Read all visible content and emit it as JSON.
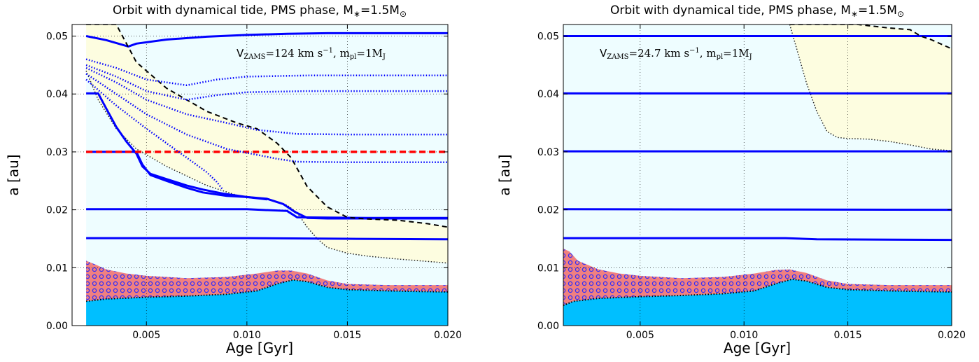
{
  "chart_data": [
    {
      "type": "line",
      "title": "Orbit with dynamical tide, PMS phase, M∗=1.5M⊙",
      "xlabel": "Age [Gyr]",
      "ylabel": "a [au]",
      "xlim": [
        0.0013,
        0.02
      ],
      "ylim": [
        0.0,
        0.052
      ],
      "x_ticks": [
        "0.005",
        "0.010",
        "0.015",
        "0.020"
      ],
      "x_tick_values": [
        0.005,
        0.01,
        0.015,
        0.02
      ],
      "y_ticks": [
        "0.00",
        "0.01",
        "0.02",
        "0.03",
        "0.04",
        "0.05"
      ],
      "y_tick_values": [
        0.0,
        0.01,
        0.02,
        0.03,
        0.04,
        0.05
      ],
      "grid": true,
      "annotation": "V_ZAMS = 124 km s⁻¹, m_pl = 1M_J",
      "colors": {
        "background": "#eefdff",
        "tidal_region": "#fdfde0",
        "star": "#00bfff",
        "hatched": "#f08080",
        "orbit": "#0000ff",
        "reference": "#ff0000"
      },
      "regions": {
        "tidal_upper": {
          "x": [
            0.002,
            0.0028,
            0.0035,
            0.0045,
            0.006,
            0.008,
            0.0095,
            0.0105,
            0.0115,
            0.0122,
            0.013,
            0.014,
            0.015,
            0.016,
            0.0175,
            0.019,
            0.02
          ],
          "y": [
            0.052,
            0.052,
            0.052,
            0.0455,
            0.041,
            0.037,
            0.035,
            0.034,
            0.0315,
            0.029,
            0.024,
            0.0205,
            0.0187,
            0.0184,
            0.0182,
            0.0176,
            0.017
          ]
        },
        "tidal_lower": {
          "x": [
            0.002,
            0.0026,
            0.0035,
            0.0045,
            0.006,
            0.008,
            0.0095,
            0.011,
            0.012,
            0.0125,
            0.013,
            0.0135,
            0.014,
            0.015,
            0.016,
            0.0175,
            0.02
          ],
          "y": [
            0.044,
            0.039,
            0.034,
            0.0305,
            0.0275,
            0.0242,
            0.0225,
            0.0218,
            0.0208,
            0.0195,
            0.017,
            0.015,
            0.0135,
            0.0125,
            0.012,
            0.0115,
            0.0108
          ]
        },
        "star_radius": {
          "x": [
            0.002,
            0.003,
            0.005,
            0.007,
            0.009,
            0.0105,
            0.0115,
            0.0123,
            0.013,
            0.014,
            0.015,
            0.017,
            0.02
          ],
          "y": [
            0.0042,
            0.0046,
            0.0049,
            0.0051,
            0.0054,
            0.006,
            0.0072,
            0.0079,
            0.0076,
            0.0066,
            0.0062,
            0.006,
            0.0058
          ]
        },
        "corotation": {
          "x": [
            0.002,
            0.0025,
            0.003,
            0.004,
            0.005,
            0.007,
            0.009,
            0.0105,
            0.0115,
            0.0122,
            0.013,
            0.014,
            0.015,
            0.017,
            0.02
          ],
          "y": [
            0.0112,
            0.0105,
            0.0097,
            0.009,
            0.0086,
            0.0082,
            0.0084,
            0.009,
            0.0095,
            0.0095,
            0.009,
            0.0078,
            0.0072,
            0.007,
            0.007
          ]
        }
      },
      "series": [
        {
          "style": "solid",
          "x": [
            0.002,
            0.003,
            0.0041,
            0.0045,
            0.006,
            0.008,
            0.01,
            0.012,
            0.014,
            0.016,
            0.02
          ],
          "y": [
            0.05,
            0.0493,
            0.0482,
            0.0487,
            0.0494,
            0.0499,
            0.0502,
            0.0504,
            0.0505,
            0.0505,
            0.0505
          ]
        },
        {
          "style": "solid",
          "x": [
            0.002,
            0.0026,
            0.003,
            0.0035,
            0.004,
            0.0045,
            0.0048,
            0.0052,
            0.006,
            0.007,
            0.0078,
            0.0088,
            0.01,
            0.011,
            0.0118,
            0.0124,
            0.013,
            0.014,
            0.017,
            0.02
          ],
          "y": [
            0.0401,
            0.0401,
            0.0375,
            0.0343,
            0.0318,
            0.0297,
            0.0275,
            0.0262,
            0.0253,
            0.0242,
            0.0235,
            0.0228,
            0.0222,
            0.0219,
            0.021,
            0.0196,
            0.0186,
            0.0185,
            0.0185,
            0.0185
          ]
        },
        {
          "style": "solid",
          "x": [
            0.002,
            0.0045,
            0.0048,
            0.0052,
            0.006,
            0.007,
            0.0078,
            0.009,
            0.01,
            0.011
          ],
          "y": [
            0.03,
            0.03,
            0.0278,
            0.026,
            0.025,
            0.0238,
            0.023,
            0.0224,
            0.0222,
            0.0218
          ]
        },
        {
          "style": "solid",
          "x": [
            0.002,
            0.006,
            0.01,
            0.012,
            0.0125,
            0.016,
            0.02
          ],
          "y": [
            0.0201,
            0.0201,
            0.0201,
            0.0198,
            0.0187,
            0.0186,
            0.0186
          ]
        },
        {
          "style": "solid",
          "x": [
            0.002,
            0.01,
            0.015,
            0.02
          ],
          "y": [
            0.0151,
            0.0151,
            0.015,
            0.0149
          ]
        },
        {
          "style": "dashed",
          "color": "red",
          "x": [
            0.002,
            0.02
          ],
          "y": [
            0.03,
            0.03
          ]
        },
        {
          "style": "dashed",
          "color": "black",
          "x": [
            0.002,
            0.0028,
            0.0035,
            0.0045,
            0.006,
            0.008,
            0.0095,
            0.0105,
            0.0115,
            0.0122,
            0.013,
            0.014,
            0.015,
            0.016,
            0.0175,
            0.019,
            0.02
          ],
          "y": [
            0.052,
            0.052,
            0.052,
            0.0455,
            0.041,
            0.037,
            0.035,
            0.034,
            0.0315,
            0.029,
            0.024,
            0.0205,
            0.0187,
            0.0184,
            0.0182,
            0.0176,
            0.017
          ]
        },
        {
          "style": "dotted",
          "x": [
            0.002,
            0.0035,
            0.005,
            0.007,
            0.0085,
            0.01,
            0.013,
            0.016,
            0.02
          ],
          "y": [
            0.046,
            0.0445,
            0.0425,
            0.0415,
            0.0425,
            0.043,
            0.0432,
            0.0432,
            0.0432
          ]
        },
        {
          "style": "dotted",
          "x": [
            0.002,
            0.0035,
            0.005,
            0.007,
            0.0085,
            0.01,
            0.013,
            0.016,
            0.02
          ],
          "y": [
            0.045,
            0.043,
            0.0405,
            0.039,
            0.0398,
            0.0403,
            0.0405,
            0.0405,
            0.0405
          ]
        },
        {
          "style": "dotted",
          "x": [
            0.002,
            0.0035,
            0.005,
            0.007,
            0.009,
            0.0105,
            0.0125,
            0.015,
            0.02
          ],
          "y": [
            0.0445,
            0.042,
            0.039,
            0.0365,
            0.035,
            0.0338,
            0.0331,
            0.033,
            0.033
          ]
        },
        {
          "style": "dotted",
          "x": [
            0.002,
            0.0035,
            0.005,
            0.007,
            0.009,
            0.0105,
            0.0115,
            0.0125,
            0.015,
            0.02
          ],
          "y": [
            0.0435,
            0.04,
            0.0365,
            0.033,
            0.0305,
            0.0295,
            0.0288,
            0.0283,
            0.0282,
            0.0282
          ]
        },
        {
          "style": "dotted",
          "x": [
            0.002,
            0.0035,
            0.005,
            0.0062,
            0.0072,
            0.008,
            0.0085,
            0.0088
          ],
          "y": [
            0.0425,
            0.038,
            0.034,
            0.031,
            0.0285,
            0.0265,
            0.0248,
            0.0235
          ]
        }
      ]
    },
    {
      "type": "line",
      "title": "Orbit with dynamical tide, PMS phase, M∗=1.5M⊙",
      "xlabel": "Age [Gyr]",
      "ylabel": "a [au]",
      "xlim": [
        0.0013,
        0.02
      ],
      "ylim": [
        0.0,
        0.052
      ],
      "x_ticks": [
        "0.005",
        "0.010",
        "0.015",
        "0.020"
      ],
      "x_tick_values": [
        0.005,
        0.01,
        0.015,
        0.02
      ],
      "y_ticks": [
        "0.00",
        "0.01",
        "0.02",
        "0.03",
        "0.04",
        "0.05"
      ],
      "y_tick_values": [
        0.0,
        0.01,
        0.02,
        0.03,
        0.04,
        0.05
      ],
      "grid": true,
      "annotation": "V_ZAMS = 24.7 km s⁻¹, m_pl = 1M_J",
      "colors": {
        "background": "#eefdff",
        "tidal_region": "#fdfde0",
        "star": "#00bfff",
        "hatched": "#f08080",
        "orbit": "#0000ff"
      },
      "regions": {
        "tidal_upper": {
          "x": [
            0.0122,
            0.014,
            0.0155,
            0.016,
            0.017,
            0.018,
            0.0185,
            0.019,
            0.02
          ],
          "y": [
            0.052,
            0.052,
            0.052,
            0.0518,
            0.0514,
            0.0511,
            0.05,
            0.0494,
            0.0478
          ]
        },
        "tidal_lower": {
          "x": [
            0.0122,
            0.0126,
            0.013,
            0.0135,
            0.014,
            0.0145,
            0.015,
            0.016,
            0.017,
            0.018,
            0.019,
            0.02
          ],
          "y": [
            0.052,
            0.047,
            0.042,
            0.037,
            0.0335,
            0.0325,
            0.0323,
            0.0322,
            0.0318,
            0.0312,
            0.0305,
            0.0302
          ]
        },
        "star_radius": {
          "x": [
            0.0013,
            0.0018,
            0.003,
            0.005,
            0.007,
            0.009,
            0.0105,
            0.0115,
            0.0123,
            0.013,
            0.014,
            0.015,
            0.017,
            0.02
          ],
          "y": [
            0.0035,
            0.0042,
            0.0047,
            0.005,
            0.0052,
            0.0055,
            0.006,
            0.0072,
            0.008,
            0.0077,
            0.0066,
            0.0062,
            0.006,
            0.0058
          ]
        },
        "corotation": {
          "x": [
            0.0013,
            0.0016,
            0.002,
            0.003,
            0.004,
            0.005,
            0.007,
            0.009,
            0.0105,
            0.0115,
            0.0122,
            0.013,
            0.014,
            0.015,
            0.017,
            0.02
          ],
          "y": [
            0.0133,
            0.0128,
            0.0112,
            0.0097,
            0.009,
            0.0086,
            0.0082,
            0.0084,
            0.009,
            0.0096,
            0.0097,
            0.0091,
            0.0078,
            0.0072,
            0.007,
            0.007
          ]
        }
      },
      "series": [
        {
          "style": "solid",
          "x": [
            0.0013,
            0.02
          ],
          "y": [
            0.05,
            0.05
          ]
        },
        {
          "style": "solid",
          "x": [
            0.0013,
            0.02
          ],
          "y": [
            0.0401,
            0.0401
          ]
        },
        {
          "style": "solid",
          "x": [
            0.0013,
            0.02
          ],
          "y": [
            0.0301,
            0.0301
          ]
        },
        {
          "style": "solid",
          "x": [
            0.0013,
            0.02
          ],
          "y": [
            0.0201,
            0.02
          ]
        },
        {
          "style": "solid",
          "x": [
            0.0013,
            0.012,
            0.0135,
            0.02
          ],
          "y": [
            0.0151,
            0.0151,
            0.0149,
            0.0148
          ]
        },
        {
          "style": "dashed",
          "color": "black",
          "x": [
            0.0122,
            0.014,
            0.0155,
            0.016,
            0.017,
            0.018,
            0.0185,
            0.019,
            0.02
          ],
          "y": [
            0.052,
            0.052,
            0.052,
            0.0518,
            0.0514,
            0.0511,
            0.05,
            0.0494,
            0.0478
          ]
        }
      ]
    }
  ]
}
